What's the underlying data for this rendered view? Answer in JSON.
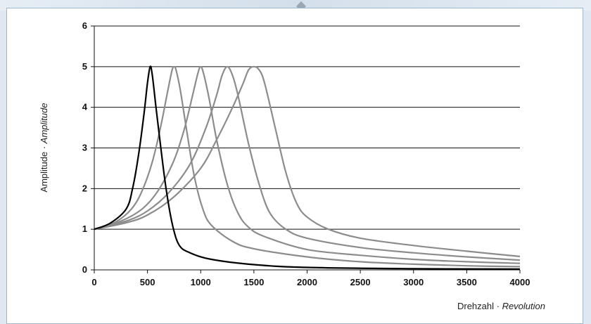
{
  "chart_data": {
    "type": "line",
    "xlabel": {
      "main": "Drehzahl · ",
      "italic": "Revolution"
    },
    "ylabel": {
      "main": "Amplitude · ",
      "italic": "Amplitude"
    },
    "xlim": [
      0,
      4000
    ],
    "ylim": [
      0,
      6
    ],
    "x_ticks": [
      "0",
      "500",
      "1000",
      "1500",
      "2000",
      "2500",
      "3000",
      "3500",
      "4000"
    ],
    "y_ticks": [
      "0",
      "1",
      "2",
      "3",
      "4",
      "5",
      "6"
    ],
    "grid": "horizontal",
    "series": [
      {
        "color": "#8c8c8c",
        "peak": 1500,
        "points": [
          [
            0,
            1.0
          ],
          [
            300,
            1.16
          ],
          [
            500,
            1.35
          ],
          [
            750,
            1.8
          ],
          [
            1000,
            2.5
          ],
          [
            1150,
            3.2
          ],
          [
            1300,
            4.0
          ],
          [
            1400,
            4.6
          ],
          [
            1450,
            4.92
          ],
          [
            1500,
            5.0
          ],
          [
            1550,
            4.92
          ],
          [
            1600,
            4.6
          ],
          [
            1700,
            3.5
          ],
          [
            1800,
            2.4
          ],
          [
            1900,
            1.65
          ],
          [
            2000,
            1.3
          ],
          [
            2200,
            1.0
          ],
          [
            2500,
            0.78
          ],
          [
            3000,
            0.6
          ],
          [
            3500,
            0.46
          ],
          [
            4000,
            0.33
          ]
        ]
      },
      {
        "color": "#8c8c8c",
        "peak": 1250,
        "points": [
          [
            0,
            1.0
          ],
          [
            300,
            1.2
          ],
          [
            500,
            1.45
          ],
          [
            700,
            1.9
          ],
          [
            900,
            2.6
          ],
          [
            1050,
            3.5
          ],
          [
            1150,
            4.3
          ],
          [
            1200,
            4.78
          ],
          [
            1250,
            5.0
          ],
          [
            1300,
            4.78
          ],
          [
            1350,
            4.3
          ],
          [
            1450,
            3.1
          ],
          [
            1550,
            2.1
          ],
          [
            1650,
            1.4
          ],
          [
            1800,
            1.0
          ],
          [
            2000,
            0.78
          ],
          [
            2500,
            0.55
          ],
          [
            3000,
            0.42
          ],
          [
            3500,
            0.32
          ],
          [
            4000,
            0.24
          ]
        ]
      },
      {
        "color": "#8c8c8c",
        "peak": 1000,
        "points": [
          [
            0,
            1.0
          ],
          [
            250,
            1.2
          ],
          [
            450,
            1.5
          ],
          [
            600,
            1.95
          ],
          [
            750,
            2.7
          ],
          [
            850,
            3.5
          ],
          [
            920,
            4.25
          ],
          [
            970,
            4.8
          ],
          [
            1000,
            5.0
          ],
          [
            1030,
            4.8
          ],
          [
            1080,
            4.2
          ],
          [
            1150,
            3.2
          ],
          [
            1250,
            2.1
          ],
          [
            1350,
            1.4
          ],
          [
            1450,
            1.05
          ],
          [
            1600,
            0.82
          ],
          [
            2000,
            0.5
          ],
          [
            2500,
            0.36
          ],
          [
            3000,
            0.26
          ],
          [
            3500,
            0.2
          ],
          [
            4000,
            0.16
          ]
        ]
      },
      {
        "color": "#8c8c8c",
        "peak": 750,
        "points": [
          [
            0,
            1.0
          ],
          [
            200,
            1.18
          ],
          [
            350,
            1.5
          ],
          [
            450,
            1.95
          ],
          [
            550,
            2.7
          ],
          [
            630,
            3.6
          ],
          [
            690,
            4.4
          ],
          [
            730,
            4.9
          ],
          [
            750,
            5.0
          ],
          [
            770,
            4.9
          ],
          [
            810,
            4.4
          ],
          [
            870,
            3.4
          ],
          [
            940,
            2.3
          ],
          [
            1020,
            1.5
          ],
          [
            1100,
            1.1
          ],
          [
            1300,
            0.7
          ],
          [
            1500,
            0.52
          ],
          [
            2000,
            0.32
          ],
          [
            2500,
            0.2
          ],
          [
            3000,
            0.14
          ],
          [
            3500,
            0.1
          ],
          [
            4000,
            0.08
          ]
        ]
      },
      {
        "color": "#000000",
        "peak": 525,
        "points": [
          [
            0,
            1.0
          ],
          [
            150,
            1.15
          ],
          [
            300,
            1.5
          ],
          [
            360,
            2.0
          ],
          [
            420,
            2.9
          ],
          [
            470,
            3.9
          ],
          [
            500,
            4.6
          ],
          [
            525,
            5.0
          ],
          [
            545,
            4.8
          ],
          [
            580,
            4.0
          ],
          [
            630,
            2.9
          ],
          [
            680,
            1.9
          ],
          [
            740,
            1.05
          ],
          [
            800,
            0.6
          ],
          [
            900,
            0.42
          ],
          [
            1100,
            0.26
          ],
          [
            1500,
            0.13
          ],
          [
            2000,
            0.06
          ],
          [
            3000,
            0.03
          ],
          [
            4000,
            0.02
          ]
        ]
      }
    ]
  }
}
